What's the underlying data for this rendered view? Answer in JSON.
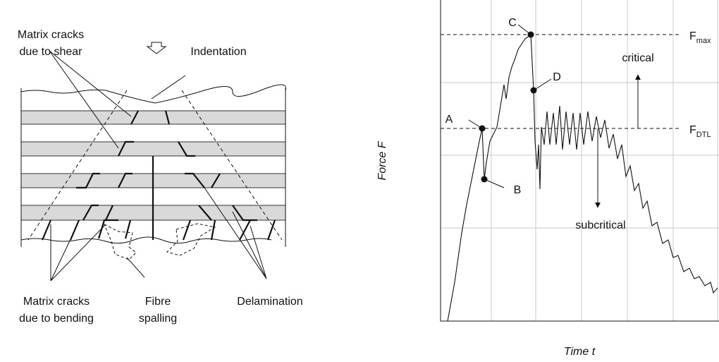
{
  "laminate": {
    "labels": {
      "shear_cracks": [
        "Matrix cracks",
        "due to shear"
      ],
      "indentation": "Indentation",
      "bending_cracks": [
        "Matrix cracks",
        "due to bending"
      ],
      "spalling": [
        "Fibre",
        "spalling"
      ],
      "delamination": "Delamination"
    }
  },
  "force_curve": {
    "points": [
      "A",
      "B",
      "C",
      "D"
    ],
    "levels": {
      "max": {
        "base": "F",
        "sub": "max"
      },
      "dtl": {
        "base": "F",
        "sub": "DTL"
      }
    },
    "arrows": {
      "critical": "critical",
      "subcritical": "subcritical"
    },
    "y_label": "Force F",
    "x_label": "Time t"
  }
}
